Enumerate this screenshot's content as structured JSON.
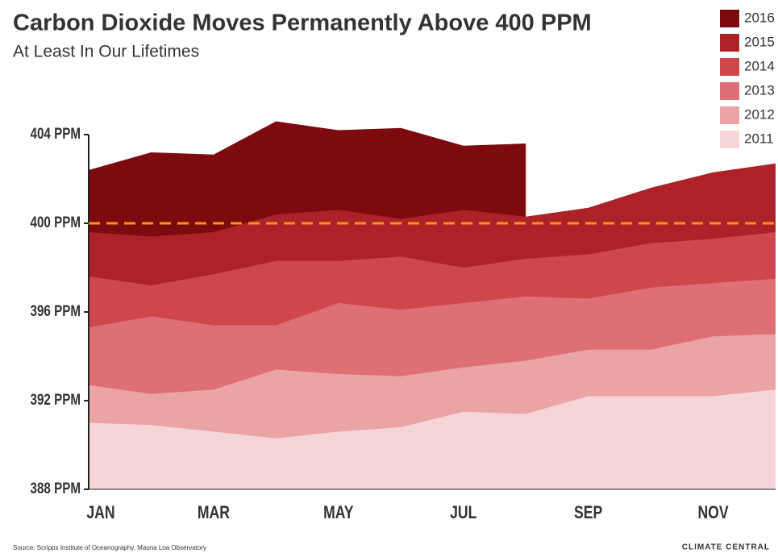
{
  "chart_data": {
    "type": "area",
    "title": "Carbon Dioxide Moves Permanently Above 400 PPM",
    "subtitle": "At Least In Our Lifetimes",
    "source": "Source: Scripps Institute of Oceanography, Mauna Loa Observatory",
    "brand": "CLIMATE CENTRAL",
    "categories": [
      "JAN",
      null,
      "MAR",
      null,
      "MAY",
      null,
      "JUL",
      null,
      "SEP",
      null,
      "NOV",
      null
    ],
    "series": [
      {
        "name": "2016",
        "color": "#7d0a0e",
        "values": [
          402.4,
          403.2,
          403.1,
          404.6,
          404.2,
          404.3,
          403.5,
          403.6,
          null,
          null,
          null,
          null
        ]
      },
      {
        "name": "2015",
        "color": "#ad2229",
        "values": [
          399.6,
          399.4,
          399.6,
          400.4,
          400.6,
          400.2,
          400.6,
          400.3,
          400.7,
          401.6,
          402.3,
          402.7
        ]
      },
      {
        "name": "2014",
        "color": "#cf474d",
        "values": [
          397.6,
          397.2,
          397.7,
          398.3,
          398.3,
          398.5,
          398.0,
          398.4,
          398.6,
          399.1,
          399.3,
          399.6
        ]
      },
      {
        "name": "2013",
        "color": "#de7075",
        "values": [
          395.3,
          395.8,
          395.4,
          395.4,
          396.4,
          396.1,
          396.4,
          396.7,
          396.6,
          397.1,
          397.3,
          397.5
        ]
      },
      {
        "name": "2012",
        "color": "#eaa4a6",
        "values": [
          392.7,
          392.3,
          392.5,
          393.4,
          393.2,
          393.1,
          393.5,
          393.8,
          394.3,
          394.3,
          394.9,
          395.0
        ]
      },
      {
        "name": "2011",
        "color": "#f6d5d6",
        "values": [
          391.0,
          390.9,
          390.6,
          390.3,
          390.6,
          390.8,
          391.5,
          391.4,
          392.2,
          392.2,
          392.2,
          392.5
        ]
      }
    ],
    "ylim": [
      388,
      405
    ],
    "yticks": [
      {
        "value": 388,
        "label": "388 PPM"
      },
      {
        "value": 392,
        "label": "392 PPM"
      },
      {
        "value": 396,
        "label": "396 PPM"
      },
      {
        "value": 400,
        "label": "400 PPM"
      },
      {
        "value": 404,
        "label": "404 PPM"
      }
    ],
    "threshold": {
      "value": 400,
      "color": "#f7941d"
    }
  }
}
